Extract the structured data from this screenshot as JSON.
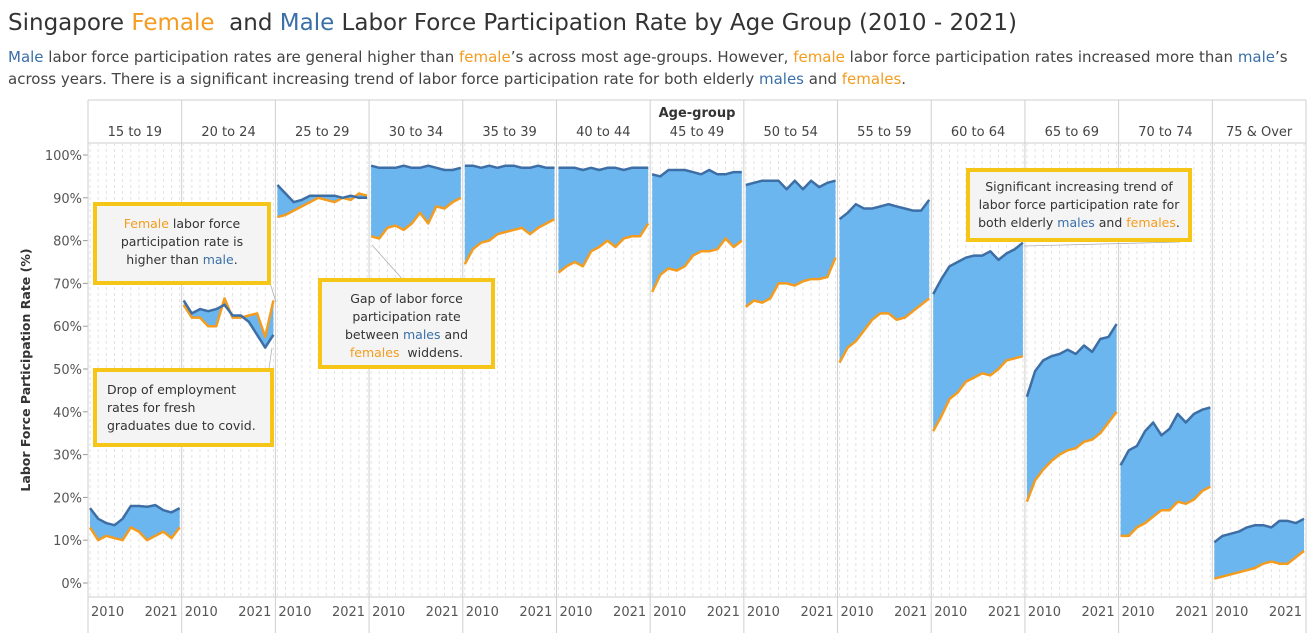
{
  "title": {
    "pre": "Singapore ",
    "female": "Female",
    "mid": "  and ",
    "male": "Male",
    "post": " Labor Force Participation Rate by Age Group (2010 - 2021)"
  },
  "subtitle": {
    "s1": "Male",
    "s2": " labor force participation rates are general higher than ",
    "s3": "female",
    "s4": "’s across most age-groups. However, ",
    "s5": "female",
    "s6": " labor force participation rates increased more than ",
    "s7": "male",
    "s8": "’s across years. There is a significant increasing trend of labor force participation rate for both elderly ",
    "s9": "males",
    "s10": " and ",
    "s11": "females",
    "s12": "."
  },
  "callouts": {
    "c1": {
      "a": "Female",
      "b": " labor force participation rate is higher than ",
      "c": "male",
      "d": "."
    },
    "c2": {
      "a": "Gap of labor force participation rate between ",
      "b": "males",
      "c": " and ",
      "d": "females",
      "e": "  widdens."
    },
    "c3": {
      "a": "Drop of employment rates for fresh graduates due to covid."
    },
    "c4": {
      "a": "Significant increasing trend of labor force participation rate for both elderly ",
      "b": "males",
      "c": " and ",
      "d": "females",
      "e": "."
    }
  },
  "colors": {
    "male": "#3d6ea5",
    "female": "#f39c1f",
    "gap": "#6bb6ee",
    "callout_border": "#f5c518"
  },
  "chart_data": {
    "type": "area",
    "column_header": "Age-group",
    "ylabel": "Labor Force Participation Rate (%)",
    "ylim": [
      0,
      100
    ],
    "y_ticks": [
      "0%",
      "10%",
      "20%",
      "30%",
      "40%",
      "50%",
      "60%",
      "70%",
      "80%",
      "90%",
      "100%"
    ],
    "years": [
      2010,
      2011,
      2012,
      2013,
      2014,
      2015,
      2016,
      2017,
      2018,
      2019,
      2020,
      2021
    ],
    "x_tick_labels": [
      "2010",
      "2021"
    ],
    "groups": [
      {
        "name": "15 to 19",
        "male": [
          17.5,
          15.0,
          14.0,
          13.5,
          15.0,
          18.0,
          18.0,
          17.8,
          18.2,
          17.0,
          16.5,
          17.5
        ],
        "female": [
          13.0,
          10.0,
          11.0,
          10.5,
          10.0,
          13.0,
          12.0,
          10.0,
          11.0,
          12.0,
          10.5,
          13.0
        ]
      },
      {
        "name": "20 to 24",
        "male": [
          66.0,
          63.0,
          64.0,
          63.5,
          64.0,
          65.0,
          62.5,
          62.5,
          61.0,
          58.0,
          55.0,
          58.0
        ],
        "female": [
          65.0,
          62.0,
          62.0,
          60.0,
          60.0,
          66.5,
          62.0,
          62.0,
          62.5,
          63.0,
          57.5,
          66.0
        ]
      },
      {
        "name": "25 to 29",
        "male": [
          93.0,
          91.0,
          89.0,
          89.5,
          90.5,
          90.5,
          90.5,
          90.5,
          90.0,
          90.5,
          90.0,
          90.0
        ],
        "female": [
          85.5,
          86.0,
          87.0,
          88.0,
          89.0,
          90.0,
          89.5,
          89.0,
          90.0,
          89.5,
          91.0,
          90.5
        ]
      },
      {
        "name": "30 to 34",
        "male": [
          97.5,
          97.0,
          97.0,
          97.0,
          97.5,
          97.0,
          97.0,
          97.5,
          97.0,
          96.5,
          96.5,
          97.0
        ],
        "female": [
          81.0,
          80.5,
          83.0,
          83.5,
          82.5,
          84.0,
          86.5,
          84.0,
          88.0,
          87.5,
          89.0,
          90.0
        ]
      },
      {
        "name": "35 to 39",
        "male": [
          97.5,
          97.5,
          97.0,
          97.5,
          97.0,
          97.5,
          97.5,
          97.0,
          97.0,
          97.5,
          97.0,
          97.0
        ],
        "female": [
          74.5,
          78.0,
          79.5,
          80.0,
          81.5,
          82.0,
          82.5,
          83.0,
          81.5,
          83.0,
          84.0,
          85.0
        ]
      },
      {
        "name": "40 to 44",
        "male": [
          97.0,
          97.0,
          97.0,
          96.5,
          97.0,
          96.5,
          97.0,
          97.0,
          96.5,
          97.0,
          97.0,
          97.0
        ],
        "female": [
          72.5,
          74.0,
          75.0,
          74.0,
          77.5,
          78.5,
          80.0,
          78.5,
          80.5,
          81.0,
          81.0,
          84.0
        ]
      },
      {
        "name": "45 to 49",
        "male": [
          95.5,
          95.0,
          96.5,
          96.5,
          96.5,
          96.0,
          95.5,
          96.5,
          95.5,
          95.5,
          96.0,
          96.0
        ],
        "female": [
          68.0,
          72.0,
          73.5,
          73.0,
          74.0,
          76.5,
          77.5,
          77.5,
          78.0,
          80.5,
          78.5,
          80.0
        ]
      },
      {
        "name": "50 to 54",
        "male": [
          93.0,
          93.5,
          94.0,
          94.0,
          94.0,
          92.0,
          94.0,
          92.0,
          94.0,
          92.5,
          93.5,
          94.0
        ],
        "female": [
          64.5,
          66.0,
          65.5,
          66.5,
          70.0,
          70.0,
          69.5,
          70.5,
          71.0,
          71.0,
          71.5,
          76.0
        ]
      },
      {
        "name": "55 to 59",
        "male": [
          85.0,
          86.5,
          88.5,
          87.5,
          87.5,
          88.0,
          88.5,
          88.0,
          87.5,
          87.0,
          87.0,
          89.5
        ],
        "female": [
          51.5,
          55.0,
          56.5,
          59.0,
          61.5,
          63.0,
          63.0,
          61.5,
          62.0,
          63.5,
          65.0,
          66.5
        ]
      },
      {
        "name": "60 to 64",
        "male": [
          67.5,
          71.0,
          74.0,
          75.0,
          76.0,
          76.5,
          76.5,
          77.5,
          75.5,
          77.0,
          78.0,
          79.5
        ],
        "female": [
          35.5,
          39.0,
          43.0,
          44.5,
          47.0,
          48.0,
          49.0,
          48.5,
          50.0,
          52.0,
          52.5,
          53.0
        ]
      },
      {
        "name": "65 to 69",
        "male": [
          43.5,
          49.5,
          52.0,
          53.0,
          53.5,
          54.5,
          53.5,
          55.5,
          54.0,
          57.0,
          57.5,
          60.5
        ],
        "female": [
          19.0,
          24.0,
          26.5,
          28.5,
          30.0,
          31.0,
          31.5,
          33.0,
          33.5,
          35.0,
          37.5,
          40.0
        ]
      },
      {
        "name": "70 to 74",
        "male": [
          27.5,
          31.0,
          32.0,
          35.5,
          37.5,
          34.5,
          36.0,
          39.5,
          37.5,
          39.5,
          40.5,
          41.0
        ],
        "female": [
          11.0,
          11.0,
          13.0,
          14.0,
          15.5,
          17.0,
          17.0,
          19.0,
          18.5,
          19.5,
          21.5,
          22.5
        ]
      },
      {
        "name": "75 & Over",
        "male": [
          9.5,
          11.0,
          11.5,
          12.0,
          13.0,
          13.5,
          13.5,
          13.0,
          14.5,
          14.5,
          14.0,
          15.0
        ],
        "female": [
          1.0,
          1.5,
          2.0,
          2.5,
          3.0,
          3.5,
          4.5,
          5.0,
          4.5,
          4.5,
          6.0,
          7.5
        ]
      }
    ]
  }
}
